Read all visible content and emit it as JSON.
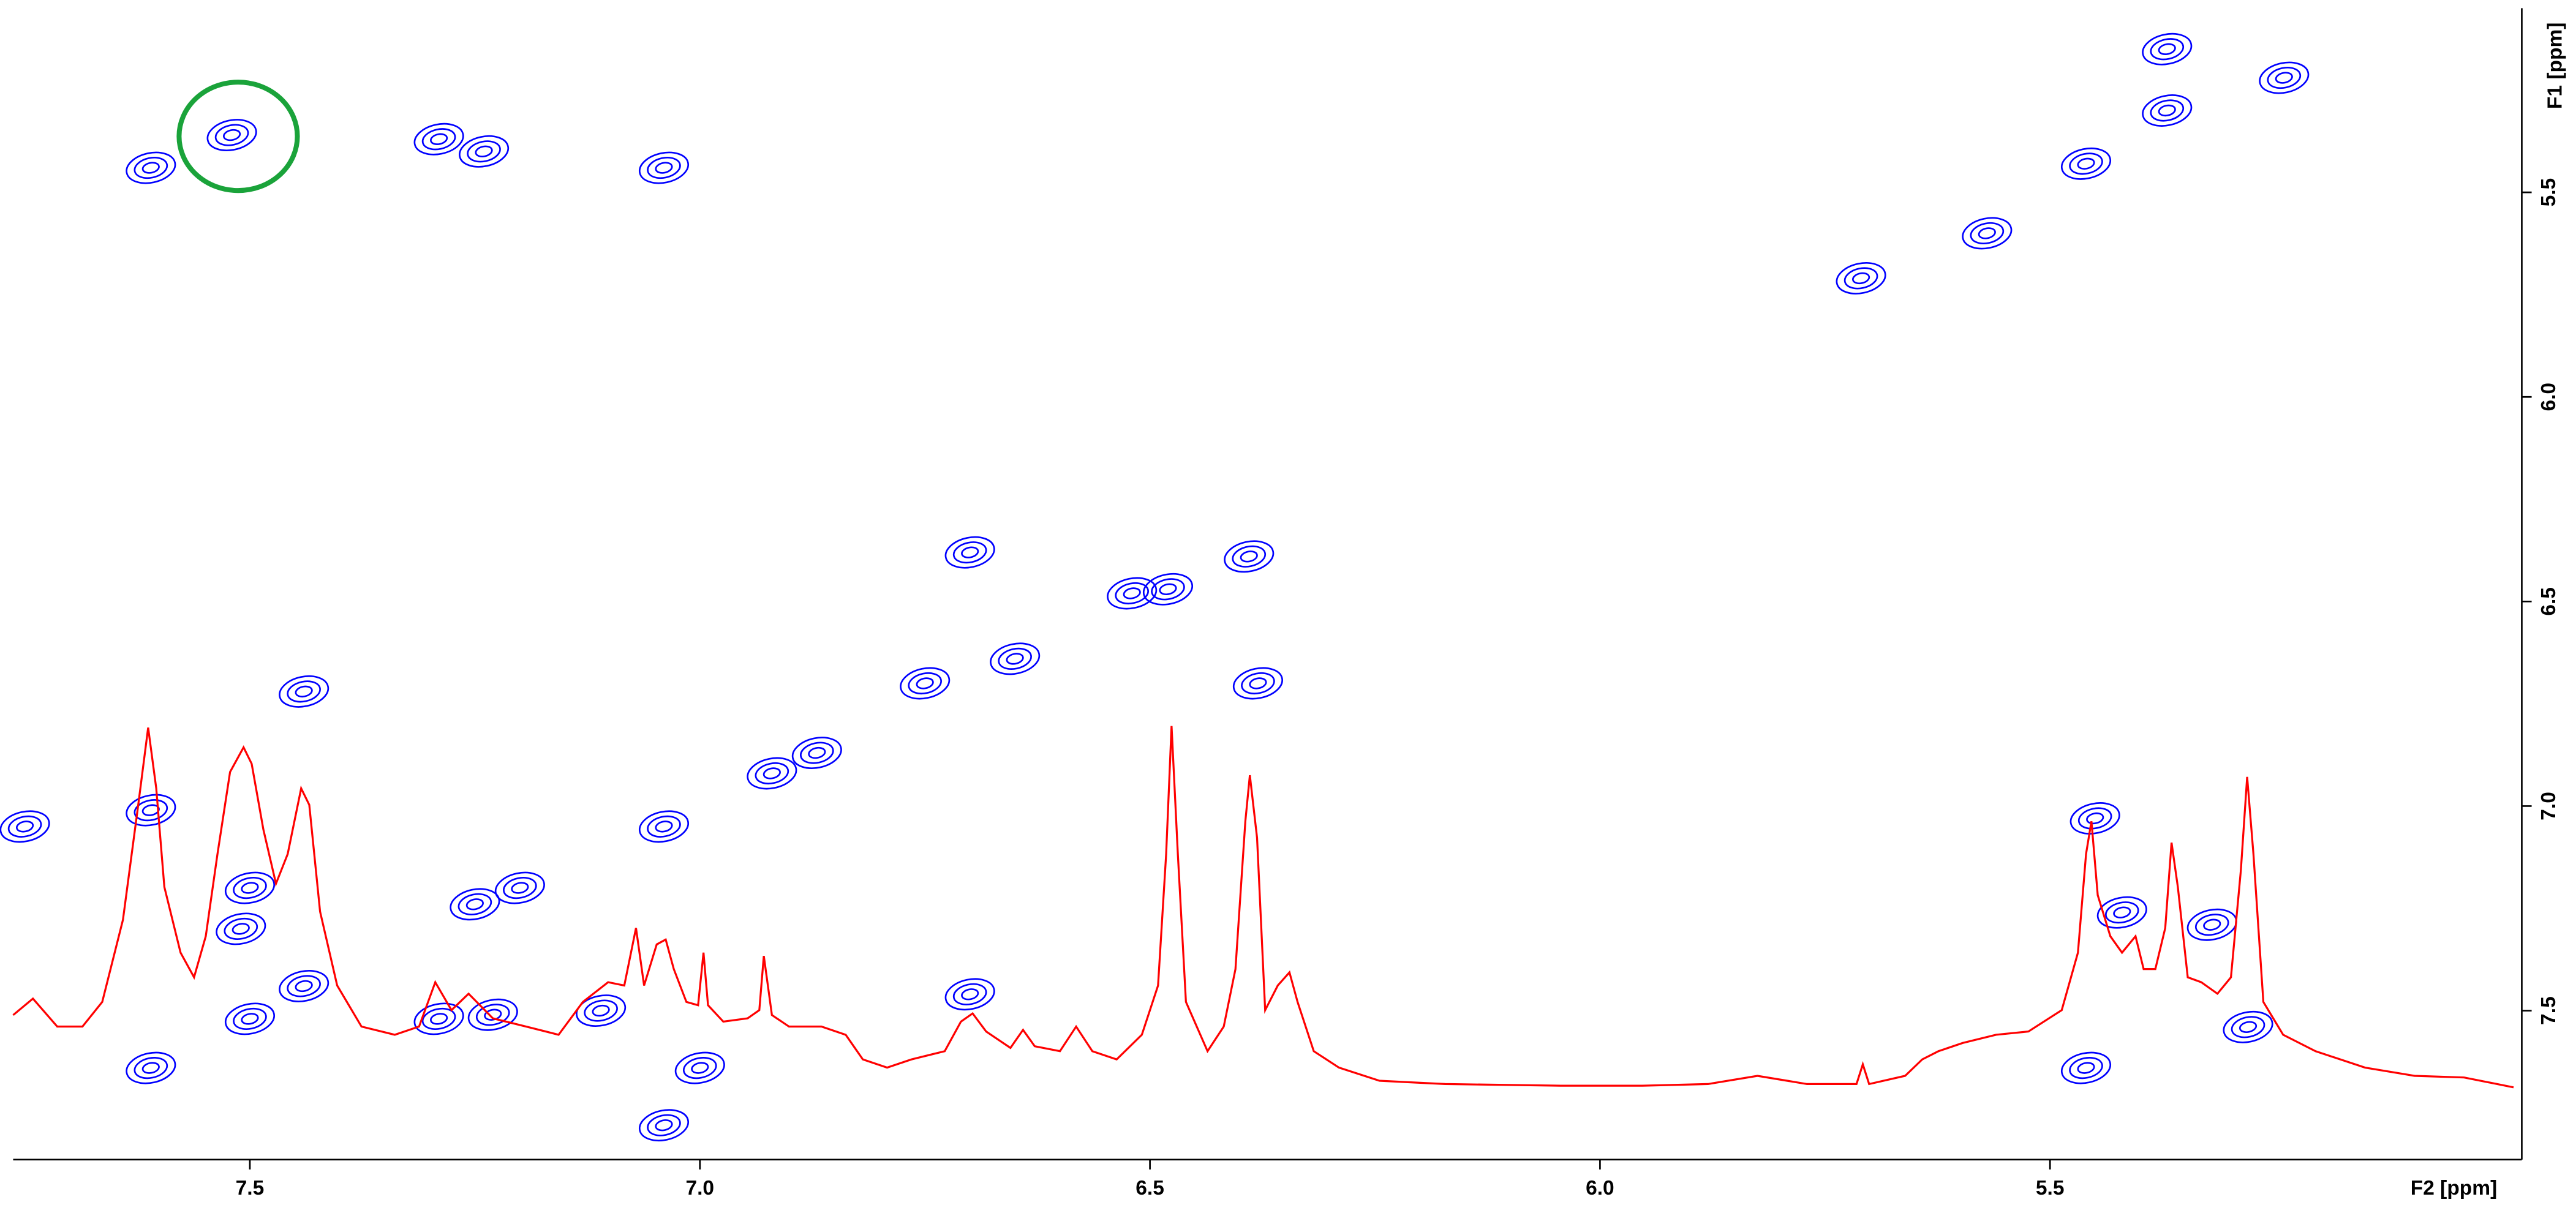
{
  "chart_data": {
    "type": "contour",
    "xlabel": "F2 [ppm]",
    "ylabel": "F1 [ppm]",
    "xlim": [
      7.763,
      4.985
    ],
    "ylim": [
      5.05,
      7.86
    ],
    "y2lim": [
      -22.5,
      327.5
    ],
    "xticks": [
      7.5,
      {
        "value": 7,
        "label": "7.0"
      },
      6.5,
      {
        "value": 6,
        "label": "6.0"
      },
      5.5
    ],
    "yticks": [
      5.5,
      {
        "value": 6,
        "label": "6.0"
      },
      6.5,
      {
        "value": 7,
        "label": "7.0"
      },
      7.5
    ],
    "series": [
      {
        "type": "contour",
        "color": "#0000ff",
        "x": [
          7.52,
          7.61,
          7.29,
          7.24,
          7.04,
          5.24,
          5.37,
          5.46,
          5.57,
          5.71,
          5.37,
          6.7,
          6.48,
          6.39,
          6.52,
          6.38,
          6.65,
          6.75,
          7.44,
          6.87,
          6.92,
          7.04,
          7.25,
          7.2,
          7.61,
          7.75,
          7.5,
          7.51,
          7.44,
          7.5,
          7.61,
          7.29,
          7.23,
          6.7,
          7.0,
          7.04,
          5.45,
          5.42,
          5.32,
          5.28,
          5.46,
          7.11
        ],
        "values": [
          5.36,
          5.44,
          5.37,
          5.4,
          5.44,
          5.22,
          5.3,
          5.43,
          5.6,
          5.71,
          5.15,
          6.38,
          6.47,
          6.39,
          6.48,
          6.7,
          6.64,
          6.7,
          6.72,
          6.87,
          6.92,
          7.05,
          7.24,
          7.2,
          7.01,
          7.05,
          7.2,
          7.3,
          7.44,
          7.52,
          7.64,
          7.52,
          7.51,
          7.46,
          7.64,
          7.78,
          7.03,
          7.26,
          7.29,
          7.54,
          7.64,
          7.5
        ]
      },
      {
        "type": "line",
        "color": "#ff0000",
        "axis": "y2",
        "x": [
          7.763,
          7.741,
          7.714,
          7.686,
          7.664,
          7.641,
          7.624,
          7.613,
          7.604,
          7.595,
          7.577,
          7.562,
          7.549,
          7.536,
          7.522,
          7.507,
          7.498,
          7.485,
          7.471,
          7.458,
          7.443,
          7.434,
          7.422,
          7.403,
          7.376,
          7.339,
          7.312,
          7.294,
          7.276,
          7.257,
          7.23,
          7.193,
          7.157,
          7.13,
          7.102,
          7.084,
          7.071,
          7.062,
          7.048,
          7.038,
          7.029,
          7.015,
          7.002,
          6.996,
          6.991,
          6.974,
          6.947,
          6.934,
          6.929,
          6.92,
          6.901,
          6.865,
          6.838,
          6.819,
          6.792,
          6.765,
          6.728,
          6.71,
          6.697,
          6.682,
          6.655,
          6.641,
          6.628,
          6.6,
          6.582,
          6.564,
          6.537,
          6.509,
          6.491,
          6.482,
          6.476,
          6.469,
          6.46,
          6.436,
          6.418,
          6.405,
          6.394,
          6.389,
          6.381,
          6.372,
          6.358,
          6.345,
          6.336,
          6.318,
          6.29,
          6.245,
          6.172,
          6.044,
          5.953,
          5.88,
          5.825,
          5.77,
          5.715,
          5.708,
          5.701,
          5.661,
          5.642,
          5.624,
          5.597,
          5.56,
          5.524,
          5.487,
          5.469,
          5.46,
          5.454,
          5.447,
          5.433,
          5.42,
          5.405,
          5.396,
          5.383,
          5.372,
          5.365,
          5.358,
          5.347,
          5.332,
          5.314,
          5.299,
          5.288,
          5.281,
          5.274,
          5.263,
          5.241,
          5.205,
          5.15,
          5.095,
          5.04,
          4.985
        ],
        "values": [
          21,
          26,
          17.5,
          17.5,
          25,
          50,
          85,
          108.5,
          90,
          60,
          40,
          32.5,
          45,
          70,
          95,
          102.5,
          97.5,
          77.5,
          61,
          70,
          90,
          85,
          52.5,
          30,
          17.5,
          15,
          17.5,
          31,
          22.5,
          27.5,
          20,
          17.5,
          15,
          25,
          31,
          30,
          47.5,
          30,
          42.5,
          44,
          35,
          25,
          24,
          40,
          24,
          19,
          20,
          22.5,
          39,
          21,
          17.5,
          17.5,
          15,
          7.5,
          5,
          7.5,
          10,
          19,
          21.5,
          16,
          11,
          16.5,
          11.5,
          10,
          17.5,
          10,
          7.5,
          15,
          30,
          70,
          109,
          70,
          25,
          10,
          17.5,
          35,
          80,
          94,
          75,
          22.5,
          30,
          34,
          25,
          10,
          5,
          1,
          0,
          -0.5,
          -0.5,
          0,
          2.5,
          0,
          0,
          6,
          0,
          2.5,
          7.5,
          10,
          12.5,
          15,
          16,
          22.5,
          40,
          70,
          80,
          57.5,
          45,
          40,
          45,
          35,
          35,
          47.5,
          73.5,
          60,
          32.5,
          31,
          27.5,
          32.5,
          65,
          93.5,
          70,
          25,
          15,
          10,
          5,
          2.5,
          2,
          -1
        ]
      }
    ]
  }
}
